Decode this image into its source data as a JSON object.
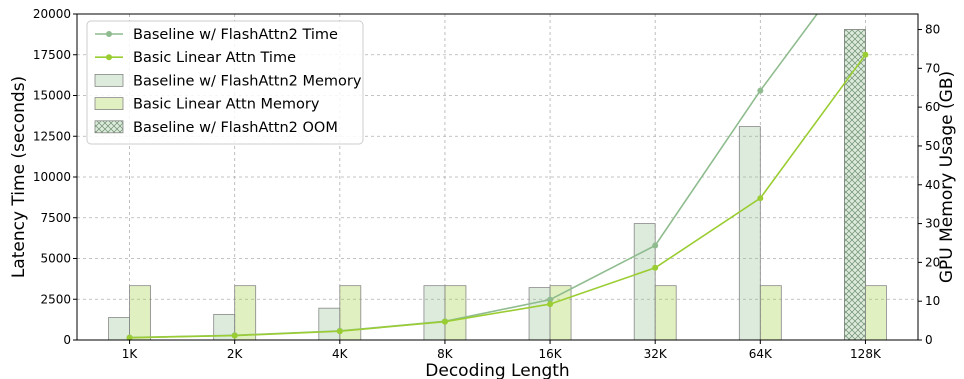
{
  "chart_data": {
    "type": "bar+line",
    "title": "",
    "xlabel": "Decoding Length",
    "ylabel_left": "Latency Time (seconds)",
    "ylabel_right": "GPU Memory Usage (GB)",
    "categories": [
      "1K",
      "2K",
      "4K",
      "8K",
      "16K",
      "32K",
      "64K",
      "128K"
    ],
    "ylim_left": [
      0,
      20000
    ],
    "ylim_right": [
      0,
      84
    ],
    "yticks_left": [
      "0",
      "2500",
      "5000",
      "7500",
      "10000",
      "12500",
      "15000",
      "17500",
      "20000"
    ],
    "yticks_right": [
      "0",
      "10",
      "20",
      "30",
      "40",
      "50",
      "60",
      "70",
      "80"
    ],
    "grid": true,
    "legend_position": "top-left",
    "line_series": [
      {
        "name": "Baseline w/ FlashAttn2 Time",
        "color": "#8fbc8f",
        "values": [
          150,
          290,
          560,
          1150,
          2480,
          5800,
          15300,
          24000
        ],
        "note_visible_last_point": false
      },
      {
        "name": "Basic Linear Attn Time",
        "color": "#9acd32",
        "values": [
          140,
          270,
          540,
          1120,
          2200,
          4430,
          8700,
          17500
        ]
      }
    ],
    "bar_series": [
      {
        "name": "Baseline w/ FlashAttn2 Memory",
        "color": "#8fbc8f",
        "values": [
          5.8,
          6.6,
          8.2,
          14,
          13.5,
          30,
          55,
          null
        ]
      },
      {
        "name": "Basic Linear Attn Memory",
        "color": "#9acd32",
        "values": [
          14,
          14,
          14,
          14,
          14,
          14,
          14,
          14
        ]
      },
      {
        "name": "Baseline w/ FlashAttn2 OOM",
        "color": "#8fbc8f",
        "hatch": "crosshatch",
        "values": [
          null,
          null,
          null,
          null,
          null,
          null,
          null,
          80
        ]
      }
    ]
  }
}
